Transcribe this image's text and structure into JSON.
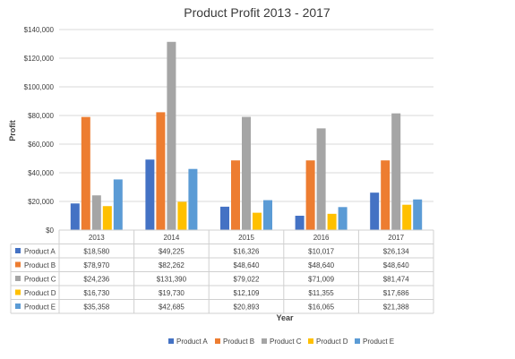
{
  "chart_data": {
    "type": "bar",
    "title": "Product Profit 2013 - 2017",
    "xlabel": "Year",
    "ylabel": "Profit",
    "ylim": [
      0,
      140000
    ],
    "yticks": [
      "$0",
      "$20,000",
      "$40,000",
      "$60,000",
      "$80,000",
      "$100,000",
      "$120,000",
      "$140,000"
    ],
    "categories": [
      "2013",
      "2014",
      "2015",
      "2016",
      "2017"
    ],
    "grid": true,
    "legend": "bottom",
    "data_table": true,
    "series": [
      {
        "name": "Product A",
        "color": "#4472C4",
        "values": [
          18580,
          49225,
          16326,
          10017,
          26134
        ],
        "labels": [
          "$18,580",
          "$49,225",
          "$16,326",
          "$10,017",
          "$26,134"
        ]
      },
      {
        "name": "Product B",
        "color": "#ED7D31",
        "values": [
          78970,
          82262,
          48640,
          48640,
          48640
        ],
        "labels": [
          "$78,970",
          "$82,262",
          "$48,640",
          "$48,640",
          "$48,640"
        ]
      },
      {
        "name": "Product C",
        "color": "#A5A5A5",
        "values": [
          24236,
          131390,
          79022,
          71009,
          81474
        ],
        "labels": [
          "$24,236",
          "$131,390",
          "$79,022",
          "$71,009",
          "$81,474"
        ]
      },
      {
        "name": "Product D",
        "color": "#FFC000",
        "values": [
          16730,
          19730,
          12109,
          11355,
          17686
        ],
        "labels": [
          "$16,730",
          "$19,730",
          "$12,109",
          "$11,355",
          "$17,686"
        ]
      },
      {
        "name": "Product E",
        "color": "#5B9BD5",
        "values": [
          35358,
          42685,
          20893,
          16065,
          21388
        ],
        "labels": [
          "$35,358",
          "$42,685",
          "$20,893",
          "$16,065",
          "$21,388"
        ]
      }
    ]
  }
}
